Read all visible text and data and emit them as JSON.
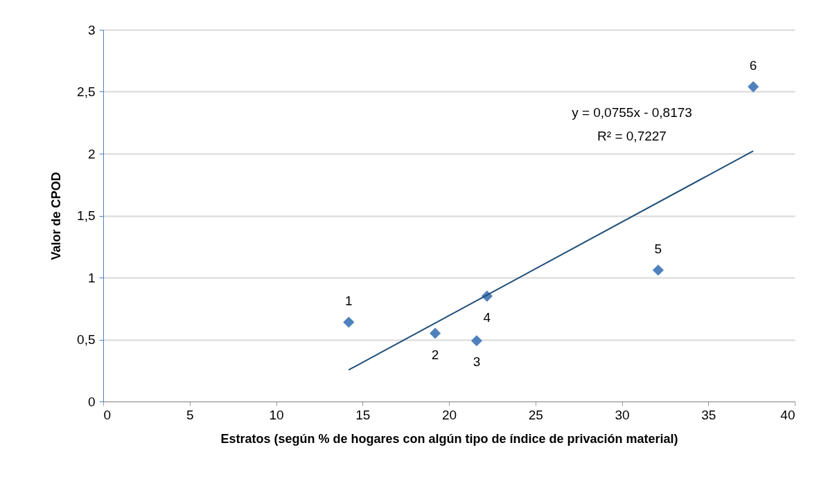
{
  "chart_data": {
    "type": "scatter",
    "xlabel": "Estratos  (según % de hogares con algún tipo de índice de privación material)",
    "ylabel": "Valor  de CPOD",
    "xlim": [
      0,
      40
    ],
    "ylim": [
      0,
      3
    ],
    "xticks": [
      0,
      5,
      10,
      15,
      20,
      25,
      30,
      35,
      40
    ],
    "yticks": [
      0,
      {
        "value": 0.5,
        "label": "0,5"
      },
      1,
      {
        "value": 1.5,
        "label": "1,5"
      },
      2,
      {
        "value": 2.5,
        "label": "2,5"
      },
      3
    ],
    "grid": "y",
    "marker": "diamond",
    "series": [
      {
        "color": "#4f81bd",
        "x": [
          14.2,
          19.2,
          21.6,
          22.2,
          32.1,
          37.6
        ],
        "values": [
          0.64,
          0.55,
          0.49,
          0.85,
          1.06,
          2.54
        ]
      },
      {
        "type": "line",
        "marker": "none",
        "color": "#1f4e79",
        "x": [
          14.2,
          37.6
        ],
        "values": [
          0.255,
          2.022
        ]
      }
    ],
    "annotations": [
      {
        "text": "1",
        "x": 14.2,
        "y": 0.64
      },
      {
        "text": "2",
        "x": 19.2,
        "y": 0.55
      },
      {
        "text": "3",
        "x": 21.6,
        "y": 0.49
      },
      {
        "text": "4",
        "x": 22.2,
        "y": 0.85
      },
      {
        "text": "5",
        "x": 32.1,
        "y": 1.06
      },
      {
        "text": "6",
        "x": 37.6,
        "y": 2.54
      },
      "y = 0,0755x - 0,8173",
      "R² = 0,7227"
    ]
  }
}
